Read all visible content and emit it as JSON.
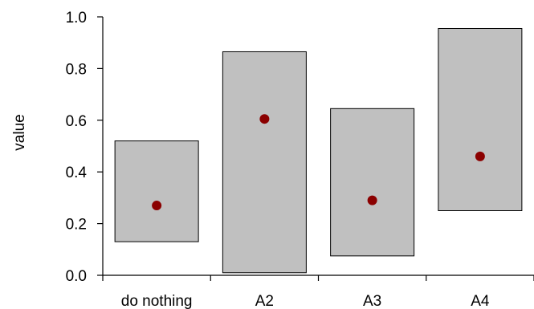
{
  "chart_data": {
    "type": "range-bar",
    "title": "",
    "xlabel": "",
    "ylabel": "value",
    "ylim": [
      0,
      1.0
    ],
    "yticks": [
      "0.0",
      "0.2",
      "0.4",
      "0.6",
      "0.8",
      "1.0"
    ],
    "categories": [
      "do nothing",
      "A2",
      "A3",
      "A4"
    ],
    "series": [
      {
        "kind": "range",
        "low": [
          0.13,
          0.01,
          0.075,
          0.25
        ],
        "high": [
          0.52,
          0.865,
          0.645,
          0.955
        ],
        "color": "#c0c0c0"
      },
      {
        "kind": "point",
        "values": [
          0.27,
          0.605,
          0.29,
          0.46
        ],
        "color": "#8b0000"
      }
    ],
    "grid": false,
    "legend": "none"
  }
}
